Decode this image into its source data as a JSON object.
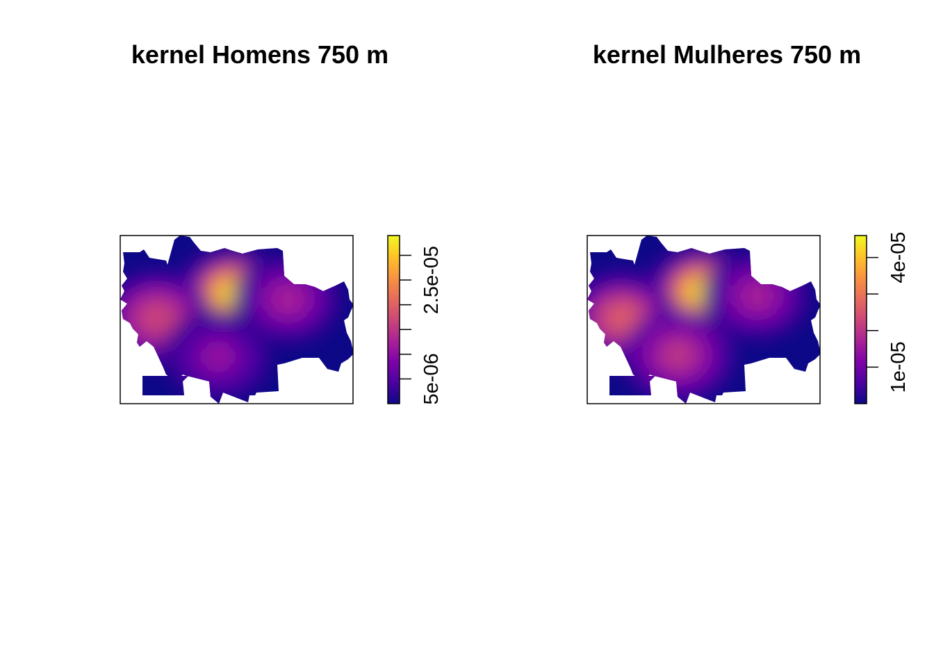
{
  "chart_data": [
    {
      "type": "heatmap",
      "title": "kernel Homens 750 m",
      "xlabel": "",
      "ylabel": "",
      "color_scale": {
        "palette": "plasma",
        "colors": [
          "#0D0887",
          "#4C02A1",
          "#7E03A8",
          "#A92395",
          "#CC4778",
          "#E66C5C",
          "#F89441",
          "#FDC328",
          "#F0F921"
        ],
        "range": [
          0,
          3.4e-05
        ],
        "ticks": [
          {
            "value": 5e-06,
            "label": "5e-06"
          },
          {
            "value": 1e-05,
            "label": ""
          },
          {
            "value": 1.5e-05,
            "label": ""
          },
          {
            "value": 2e-05,
            "label": ""
          },
          {
            "value": 2.5e-05,
            "label": "2.5e-05"
          },
          {
            "value": 3e-05,
            "label": ""
          }
        ]
      },
      "hotspots": [
        {
          "name": "central-north",
          "x": 0.49,
          "y": 0.65,
          "intensity": 1.0
        },
        {
          "name": "west",
          "x": 0.16,
          "y": 0.51,
          "intensity": 0.55
        },
        {
          "name": "south-central",
          "x": 0.42,
          "y": 0.28,
          "intensity": 0.32
        },
        {
          "name": "east",
          "x": 0.72,
          "y": 0.62,
          "intensity": 0.38
        }
      ]
    },
    {
      "type": "heatmap",
      "title": "kernel Mulheres 750 m",
      "xlabel": "",
      "ylabel": "",
      "color_scale": {
        "palette": "plasma",
        "colors": [
          "#0D0887",
          "#4C02A1",
          "#7E03A8",
          "#A92395",
          "#CC4778",
          "#E66C5C",
          "#F89441",
          "#FDC328",
          "#F0F921"
        ],
        "range": [
          0,
          4.6e-05
        ],
        "ticks": [
          {
            "value": 1e-05,
            "label": "1e-05"
          },
          {
            "value": 2e-05,
            "label": ""
          },
          {
            "value": 3e-05,
            "label": ""
          },
          {
            "value": 4e-05,
            "label": "4e-05"
          }
        ]
      },
      "hotspots": [
        {
          "name": "central-north",
          "x": 0.5,
          "y": 0.66,
          "intensity": 1.0
        },
        {
          "name": "west",
          "x": 0.15,
          "y": 0.51,
          "intensity": 0.62
        },
        {
          "name": "south-central",
          "x": 0.39,
          "y": 0.29,
          "intensity": 0.5
        },
        {
          "name": "east",
          "x": 0.73,
          "y": 0.64,
          "intensity": 0.42
        }
      ]
    }
  ]
}
